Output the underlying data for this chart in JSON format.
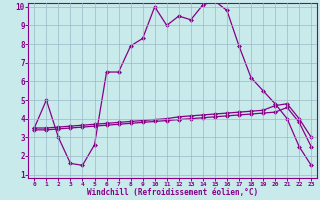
{
  "xlabel": "Windchill (Refroidissement éolien,°C)",
  "background_color": "#c8eaea",
  "grid_color": "#9ab8c8",
  "line_color": "#880088",
  "spine_color": "#880088",
  "xlim": [
    -0.5,
    23.5
  ],
  "ylim": [
    0.8,
    10.2
  ],
  "xticks": [
    0,
    1,
    2,
    3,
    4,
    5,
    6,
    7,
    8,
    9,
    10,
    11,
    12,
    13,
    14,
    15,
    16,
    17,
    18,
    19,
    20,
    21,
    22,
    23
  ],
  "yticks": [
    1,
    2,
    3,
    4,
    5,
    6,
    7,
    8,
    9,
    10
  ],
  "line1_x": [
    0,
    1,
    2,
    3,
    4,
    5,
    6,
    7,
    8,
    9,
    10,
    11,
    12,
    13,
    14,
    15,
    16,
    17,
    18,
    19,
    20,
    21,
    22,
    23
  ],
  "line1_y": [
    3.5,
    5.0,
    3.0,
    1.6,
    1.5,
    2.6,
    6.5,
    6.5,
    7.9,
    8.3,
    10.0,
    9.0,
    9.5,
    9.3,
    10.1,
    10.3,
    9.8,
    7.9,
    6.2,
    5.5,
    4.8,
    4.0,
    2.5,
    1.5
  ],
  "line2_x": [
    0,
    1,
    2,
    3,
    4,
    5,
    6,
    7,
    8,
    9,
    10,
    11,
    12,
    13,
    14,
    15,
    16,
    17,
    18,
    19,
    20,
    21,
    22,
    23
  ],
  "line2_y": [
    3.5,
    3.5,
    3.55,
    3.6,
    3.65,
    3.7,
    3.75,
    3.8,
    3.85,
    3.9,
    3.95,
    4.0,
    4.1,
    4.15,
    4.2,
    4.25,
    4.3,
    4.35,
    4.4,
    4.45,
    4.7,
    4.8,
    4.0,
    3.0
  ],
  "line3_x": [
    0,
    1,
    2,
    3,
    4,
    5,
    6,
    7,
    8,
    9,
    10,
    11,
    12,
    13,
    14,
    15,
    16,
    17,
    18,
    19,
    20,
    21,
    22,
    23
  ],
  "line3_y": [
    3.4,
    3.4,
    3.45,
    3.5,
    3.55,
    3.6,
    3.65,
    3.7,
    3.75,
    3.8,
    3.85,
    3.9,
    3.95,
    4.0,
    4.05,
    4.1,
    4.15,
    4.2,
    4.25,
    4.3,
    4.35,
    4.6,
    3.8,
    2.5
  ],
  "marker": "D",
  "markersize": 2.5,
  "linewidth": 0.9
}
